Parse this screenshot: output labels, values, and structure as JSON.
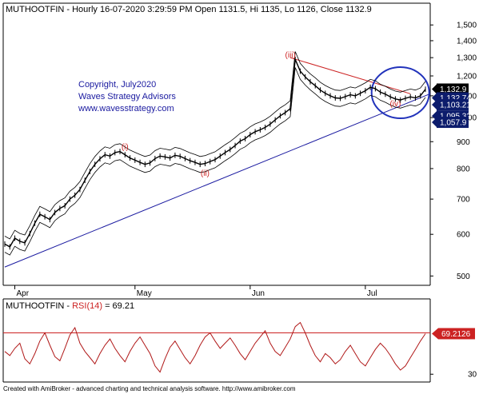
{
  "chart_data": [
    {
      "type": "line",
      "title": "MUTHOOTFIN - Hourly 16-07-2020 3:29:59 PM Open 1131.5, Hi 1135, Lo 1126, Close 1132.9",
      "title_parts": {
        "symbol": "MUTHOOTFIN",
        "rest": "- Hourly 16-07-2020 3:29:59 PM Open 1131.5, Hi 1135, Lo 1126, Close 1132.9"
      },
      "y_scale": "log",
      "ylim": [
        480,
        1560
      ],
      "y_ticks": [
        "1,500",
        "1,400",
        "1,300",
        "1,200",
        "1,100",
        "1,000",
        "900",
        "800",
        "700",
        "600",
        "500"
      ],
      "y_tick_values": [
        1500,
        1400,
        1300,
        1200,
        1100,
        1000,
        900,
        800,
        700,
        600,
        500
      ],
      "x_ticks": [
        "Apr",
        "May",
        "Jun",
        "Jul"
      ],
      "price_labels": [
        {
          "text": "1,132.9",
          "value": 1132.9,
          "style": "black"
        },
        {
          "text": "1,132.74",
          "value": 1132.74,
          "style": "navy"
        },
        {
          "text": "1,103.21",
          "value": 1103.21,
          "style": "navy"
        },
        {
          "text": "1,095.32",
          "value": 1095.32,
          "style": "navy"
        },
        {
          "text": "1,057.9",
          "value": 1057.9,
          "style": "navy"
        }
      ],
      "wave_labels": [
        {
          "text": "(i)",
          "value": 870
        },
        {
          "text": "(ii)",
          "value": 775
        },
        {
          "text": "(iii)",
          "value": 1300
        },
        {
          "text": "(iv)",
          "value": 1050
        }
      ],
      "annotation_lines": [
        {
          "text": "Copyright, July2020"
        },
        {
          "text": "Waves Strategy Advisors"
        },
        {
          "text": "www.wavesstrategy.com"
        }
      ],
      "series": [
        {
          "values": [
            575,
            568,
            590,
            582,
            578,
            602,
            630,
            655,
            648,
            640,
            660,
            672,
            680,
            700,
            712,
            730,
            760,
            790,
            815,
            835,
            850,
            845,
            858,
            862,
            850,
            838,
            830,
            822,
            815,
            820,
            836,
            845,
            842,
            838,
            848,
            844,
            836,
            828,
            822,
            815,
            818,
            825,
            832,
            845,
            858,
            870,
            885,
            902,
            912,
            928,
            940,
            948,
            958,
            972,
            990,
            1008,
            1022,
            1040,
            1290,
            1225,
            1195,
            1170,
            1150,
            1128,
            1112,
            1100,
            1090,
            1088,
            1096,
            1105,
            1100,
            1112,
            1125,
            1142,
            1135,
            1118,
            1108,
            1095,
            1085,
            1080,
            1088,
            1095,
            1090,
            1100,
            1132
          ]
        }
      ]
    },
    {
      "type": "line",
      "title": "MUTHOOTFIN - RSI(14) = 69.21",
      "title_parts": {
        "symbol": "MUTHOOTFIN",
        "sep": " - ",
        "indicator": "RSI(14)",
        "value_text": " = 69.21"
      },
      "y_ticks": [
        "30"
      ],
      "y_tick_values": [
        30
      ],
      "ylim": [
        24,
        92
      ],
      "reference_line": 70,
      "current_label": {
        "text": "69.2126",
        "value": 69.2126
      },
      "series": [
        {
          "values": [
            52,
            48,
            55,
            60,
            45,
            40,
            50,
            62,
            70,
            58,
            47,
            43,
            55,
            68,
            75,
            60,
            52,
            46,
            40,
            50,
            58,
            64,
            55,
            48,
            42,
            52,
            60,
            66,
            58,
            50,
            38,
            32,
            45,
            56,
            62,
            54,
            46,
            40,
            48,
            58,
            66,
            70,
            62,
            55,
            60,
            65,
            58,
            50,
            44,
            52,
            60,
            66,
            72,
            60,
            52,
            48,
            56,
            64,
            76,
            80,
            70,
            58,
            48,
            42,
            50,
            46,
            40,
            44,
            52,
            58,
            50,
            42,
            38,
            46,
            54,
            60,
            55,
            48,
            40,
            34,
            38,
            46,
            54,
            62,
            69.21
          ]
        }
      ]
    }
  ],
  "colors": {
    "background": "#ffffff",
    "price": "#000000",
    "trend_line": "#1a1aa0",
    "resistance_line": "#cc2222",
    "circle": "#2233bb",
    "rsi_line": "#b01818",
    "rsi_reference": "#cc2222",
    "label_black": "#000000",
    "label_navy": "#0c1c6c",
    "label_red": "#cc2222",
    "copyright_text": "#1a1aa0",
    "wave_label": "#cc2222"
  },
  "footer": {
    "text": "Created with AmiBroker - advanced charting and technical analysis software. http://www.amibroker.com"
  }
}
